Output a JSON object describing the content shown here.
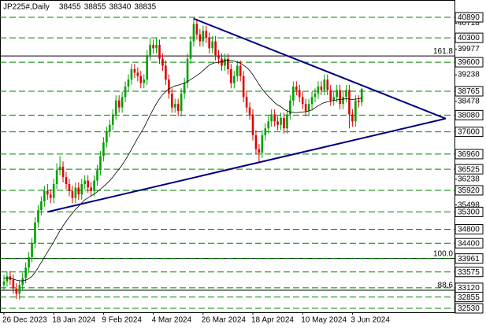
{
  "chart_data": {
    "type": "candlestick",
    "title": "JP225#,Daily",
    "categories": [
      "26 Dec 2023",
      null,
      null,
      null,
      null,
      null,
      null,
      null,
      null,
      null,
      null,
      null,
      null,
      null,
      null,
      null,
      "18 Jan 2024",
      null,
      null,
      null,
      null,
      null,
      null,
      null,
      null,
      null,
      null,
      null,
      null,
      null,
      null,
      null,
      "9 Feb 2024",
      null,
      null,
      null,
      null,
      null,
      null,
      null,
      null,
      null,
      null,
      null,
      null,
      null,
      null,
      null,
      "4 Mar 2024",
      null,
      null,
      null,
      null,
      null,
      null,
      null,
      null,
      null,
      null,
      null,
      null,
      null,
      null,
      null,
      "26 Mar 2024",
      null,
      null,
      null,
      null,
      null,
      null,
      null,
      null,
      null,
      null,
      null,
      null,
      null,
      null,
      null,
      "18 Apr 2024",
      null,
      null,
      null,
      null,
      null,
      null,
      null,
      null,
      null,
      null,
      null,
      null,
      null,
      null,
      null,
      "10 May 2024",
      null,
      null,
      null,
      null,
      null,
      null,
      null,
      null,
      null,
      null,
      null,
      null,
      null,
      null,
      null,
      "3 Jun 2024",
      null,
      null,
      null
    ],
    "open": [
      33200,
      33300,
      33450,
      33350,
      33100,
      32950,
      33200,
      33400,
      33700,
      34000,
      34400,
      35000,
      35350,
      35600,
      35900,
      35800,
      35700,
      36100,
      36500,
      36600,
      36300,
      36100,
      35900,
      35700,
      36000,
      35800,
      36100,
      36200,
      36000,
      35900,
      36200,
      36500,
      36900,
      37300,
      37600,
      37800,
      38100,
      38500,
      38300,
      38600,
      38900,
      39100,
      39400,
      39300,
      39200,
      39000,
      39100,
      39800,
      40100,
      40000,
      40100,
      39700,
      39500,
      39100,
      38700,
      38300,
      38400,
      38200,
      38700,
      39000,
      39700,
      40200,
      40700,
      40400,
      40200,
      40500,
      40300,
      40000,
      40200,
      39800,
      39700,
      39500,
      39700,
      39400,
      39000,
      39200,
      39500,
      39200,
      38600,
      38300,
      38100,
      37500,
      37100,
      37000,
      37500,
      37700,
      37900,
      38100,
      37900,
      37800,
      38000,
      37700,
      38100,
      38500,
      38900,
      38800,
      38600,
      38400,
      38200,
      38400,
      38600,
      38700,
      38900,
      38800,
      39100,
      38800,
      38500,
      38600,
      38800,
      38400,
      38600,
      38800,
      38100,
      37900,
      38500,
      38455
    ],
    "high": [
      33500,
      33600,
      33600,
      33500,
      33250,
      33350,
      33550,
      33850,
      34150,
      34550,
      35150,
      35500,
      35750,
      36050,
      36100,
      35950,
      36250,
      36700,
      36900,
      36750,
      36450,
      36250,
      36050,
      36150,
      36150,
      36250,
      36350,
      36350,
      36150,
      36350,
      36650,
      37050,
      37450,
      37750,
      37950,
      38250,
      38650,
      38650,
      38750,
      39050,
      39250,
      39550,
      39550,
      39450,
      39350,
      39250,
      39950,
      40300,
      40250,
      40300,
      40250,
      39850,
      39650,
      39250,
      38850,
      38550,
      38550,
      38850,
      39150,
      39850,
      40350,
      40890,
      40850,
      40550,
      40650,
      40650,
      40450,
      40350,
      40350,
      39950,
      39850,
      39850,
      39850,
      39550,
      39350,
      39650,
      39650,
      39350,
      38750,
      38450,
      38250,
      37650,
      37250,
      37650,
      37850,
      38050,
      38250,
      38250,
      38050,
      38150,
      38150,
      38250,
      38650,
      39050,
      39050,
      38950,
      38750,
      38550,
      38550,
      38750,
      38850,
      39050,
      39050,
      39250,
      39250,
      38950,
      38750,
      38950,
      38950,
      38750,
      38950,
      38950,
      38250,
      38650,
      38650,
      38855
    ],
    "low": [
      33050,
      33150,
      33200,
      32950,
      32800,
      32780,
      33050,
      33250,
      33550,
      33850,
      34250,
      34850,
      35200,
      35450,
      35650,
      35550,
      35550,
      35950,
      36350,
      36150,
      35950,
      35750,
      35550,
      35550,
      35650,
      35650,
      35950,
      35850,
      35750,
      35750,
      36050,
      36350,
      36750,
      37150,
      37450,
      37650,
      37950,
      38150,
      38150,
      38450,
      38750,
      38950,
      39150,
      39050,
      38850,
      38850,
      38950,
      39650,
      39850,
      39850,
      39550,
      39350,
      38950,
      38550,
      38150,
      38150,
      38050,
      38050,
      38550,
      38850,
      39550,
      40050,
      40250,
      40050,
      40050,
      40150,
      39850,
      39850,
      39650,
      39550,
      39350,
      39350,
      39250,
      38850,
      38850,
      39050,
      39050,
      38450,
      38150,
      37950,
      37350,
      36950,
      36700,
      36850,
      37350,
      37550,
      37750,
      37750,
      37650,
      37650,
      37550,
      37550,
      37950,
      38350,
      38650,
      38450,
      38250,
      38050,
      38050,
      38250,
      38450,
      38550,
      38650,
      38650,
      38650,
      38350,
      38350,
      38450,
      38250,
      38250,
      38450,
      37700,
      37750,
      37750,
      38300,
      38340
    ],
    "close": [
      33300,
      33450,
      33350,
      33100,
      32950,
      33200,
      33400,
      33700,
      34000,
      34400,
      35000,
      35350,
      35600,
      35900,
      35800,
      35700,
      36100,
      36500,
      36600,
      36300,
      36100,
      35900,
      35700,
      36000,
      35800,
      36100,
      36200,
      36000,
      35900,
      36200,
      36500,
      36900,
      37300,
      37600,
      37800,
      38100,
      38500,
      38300,
      38600,
      38900,
      39100,
      39400,
      39300,
      39200,
      39000,
      39100,
      39800,
      40100,
      40000,
      40100,
      39700,
      39500,
      39100,
      38700,
      38300,
      38400,
      38200,
      38700,
      39000,
      39700,
      40200,
      40700,
      40400,
      40200,
      40500,
      40300,
      40000,
      40200,
      39800,
      39700,
      39500,
      39700,
      39400,
      39000,
      39200,
      39500,
      39200,
      38600,
      38300,
      38100,
      37500,
      37100,
      37000,
      37500,
      37700,
      37900,
      38100,
      37900,
      37800,
      38000,
      37700,
      38100,
      38500,
      38900,
      38800,
      38600,
      38400,
      38200,
      38400,
      38600,
      38700,
      38900,
      38800,
      39100,
      38800,
      38500,
      38600,
      38800,
      38400,
      38600,
      38800,
      38100,
      37900,
      38500,
      38455,
      38835
    ],
    "ma": [
      33400,
      33400,
      33390,
      33370,
      33340,
      33320,
      33320,
      33340,
      33380,
      33450,
      33560,
      33700,
      33850,
      34000,
      34150,
      34290,
      34440,
      34600,
      34760,
      34900,
      35030,
      35150,
      35260,
      35370,
      35460,
      35560,
      35650,
      35700,
      35760,
      35810,
      35880,
      35950,
      36030,
      36110,
      36200,
      36300,
      36420,
      36530,
      36650,
      36790,
      36940,
      37100,
      37260,
      37420,
      37570,
      37720,
      37900,
      38080,
      38250,
      38410,
      38550,
      38670,
      38760,
      38830,
      38880,
      38920,
      38940,
      38970,
      39000,
      39050,
      39100,
      39160,
      39220,
      39280,
      39360,
      39440,
      39520,
      39560,
      39590,
      39600,
      39620,
      39640,
      39660,
      39650,
      39630,
      39600,
      39570,
      39510,
      39450,
      39360,
      39240,
      39100,
      38960,
      38830,
      38720,
      38620,
      38530,
      38440,
      38370,
      38320,
      38250,
      38200,
      38170,
      38160,
      38150,
      38160,
      38170,
      38180,
      38200,
      38230,
      38290,
      38350,
      38400,
      38440,
      38460,
      38480,
      38500,
      38520,
      38530,
      38540,
      38550,
      38540,
      38530,
      38540,
      38550,
      38570
    ],
    "up_color": "#00a000",
    "down_color": "#e00000",
    "ma_color": "#000000",
    "ylim": [
      32417,
      41319
    ],
    "yticks": [
      40718,
      39977,
      39238,
      38478,
      36238,
      35498
    ],
    "levels": [
      40890,
      40300,
      39600,
      38765,
      38080,
      37600,
      36960,
      36525,
      35920,
      35300,
      34800,
      34400,
      33961,
      33575,
      33120,
      32855,
      32530
    ],
    "level_color": "#008000",
    "fib_levels": [
      {
        "value": 39780,
        "label": "161.8"
      },
      {
        "value": 33961,
        "label": "100.0"
      },
      {
        "value": 33050,
        "label": "88.6"
      }
    ],
    "trendlines": [
      {
        "color": "#000080",
        "x": [
          61,
          142
        ],
        "values": [
          40850,
          37980
        ]
      },
      {
        "color": "#000080",
        "x": [
          14,
          142
        ],
        "values": [
          35300,
          37980
        ]
      }
    ]
  }
}
